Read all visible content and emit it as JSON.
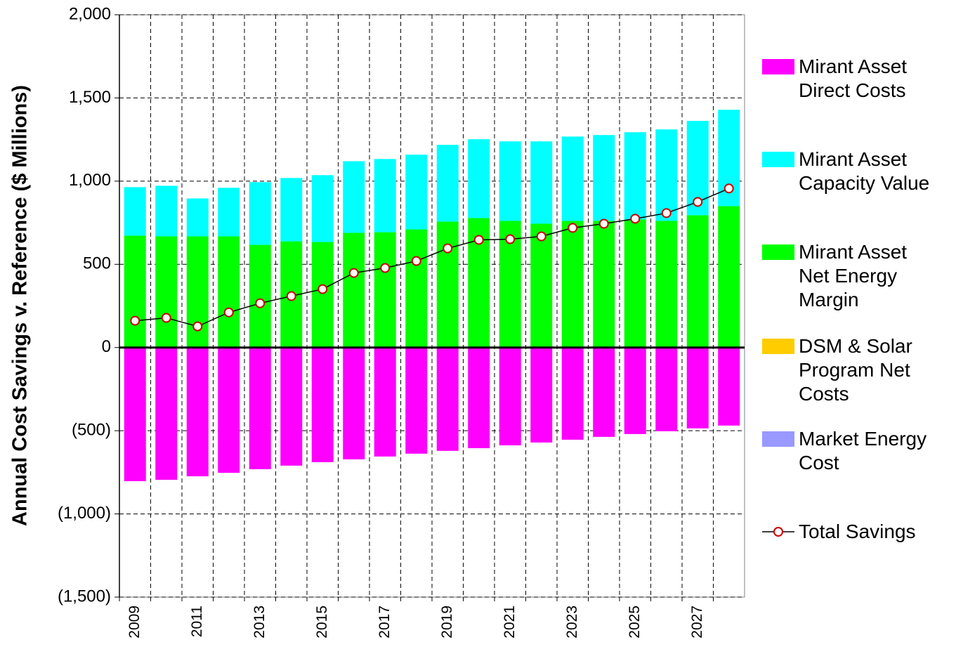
{
  "chart_data": {
    "type": "bar",
    "stacked": true,
    "y_label": "Annual Cost Savings v. Reference ($ Millions)",
    "categories": [
      "2009",
      null,
      "2011",
      null,
      "2013",
      null,
      "2015",
      null,
      "2017",
      null,
      "2019",
      null,
      "2021",
      null,
      "2023",
      null,
      "2025",
      null,
      "2027",
      null
    ],
    "series": [
      {
        "name": "Mirant Asset Direct Costs",
        "color": "#ff00ff",
        "type": "bar",
        "values": [
          -803,
          -795,
          -774,
          -753,
          -731,
          -710,
          -689,
          -672,
          -655,
          -638,
          -621,
          -605,
          -588,
          -571,
          -554,
          -537,
          -520,
          -503,
          -486,
          -469
        ]
      },
      {
        "name": "Mirant Asset Capacity Value",
        "color": "#00ffff",
        "type": "bar",
        "values": [
          292,
          304,
          228,
          292,
          377,
          381,
          402,
          431,
          440,
          449,
          461,
          474,
          478,
          495,
          507,
          515,
          524,
          550,
          567,
          579
        ]
      },
      {
        "name": "Mirant Asset Net Energy Margin",
        "color": "#00ff00",
        "type": "bar",
        "values": [
          672,
          668,
          668,
          668,
          617,
          638,
          634,
          689,
          693,
          710,
          757,
          778,
          761,
          744,
          761,
          762,
          770,
          761,
          795,
          850
        ]
      },
      {
        "name": "DSM & Solar Program Net Costs",
        "color": "#ffcc00",
        "type": "bar",
        "values": [
          0,
          0,
          0,
          0,
          0,
          0,
          0,
          0,
          0,
          0,
          0,
          0,
          0,
          0,
          0,
          0,
          0,
          0,
          0,
          0
        ]
      },
      {
        "name": "Market Energy Cost",
        "color": "#9999ff",
        "type": "bar",
        "values": [
          0,
          0,
          0,
          0,
          0,
          0,
          0,
          0,
          0,
          0,
          0,
          0,
          0,
          0,
          0,
          0,
          0,
          0,
          0,
          0
        ]
      },
      {
        "name": "Total Savings",
        "color": "#000000",
        "marker_color": "#cc0000",
        "type": "line",
        "values": [
          161,
          178,
          127,
          211,
          266,
          309,
          351,
          448,
          478,
          520,
          596,
          647,
          651,
          668,
          719,
          744,
          774,
          808,
          875,
          956
        ]
      }
    ],
    "ylim": [
      -1500,
      2000
    ],
    "yticks": [
      {
        "value": -1500,
        "label": "(1,500)"
      },
      {
        "value": -1000,
        "label": "(1,000)"
      },
      {
        "value": -500,
        "label": "(500)"
      },
      0,
      500,
      {
        "value": 1000,
        "label": "1,000"
      },
      {
        "value": 1500,
        "label": "1,500"
      },
      {
        "value": 2000,
        "label": "2,000"
      }
    ],
    "grid": true,
    "legend": "right"
  }
}
